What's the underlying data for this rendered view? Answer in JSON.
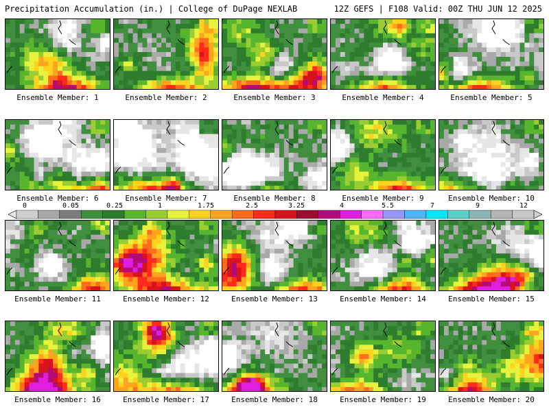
{
  "header": {
    "title_left": "Precipitation Accumulation (in.) | College of DuPage NEXLAB",
    "title_right": "12Z GEFS | F108 Valid: 00Z THU JUN 12 2025"
  },
  "colorbar": {
    "labels": [
      "0",
      "0.05",
      "0.25",
      "1",
      "1.75",
      "2.5",
      "3.25",
      "4",
      "5.5",
      "7",
      "9",
      "12"
    ],
    "colors": [
      "#cfcfcf",
      "#a8a8a8",
      "#7c7c7c",
      "#3f8f3f",
      "#2e7d2e",
      "#58b62e",
      "#9acd32",
      "#e6f23c",
      "#ffd21e",
      "#ffa41e",
      "#ff6c1e",
      "#ff2a1e",
      "#d7141e",
      "#9b0d2e",
      "#b40a7a",
      "#e01ee0",
      "#ff6cff",
      "#9696ff",
      "#4fb4ff",
      "#00e6ff",
      "#5ad0c8",
      "#8cb4b4",
      "#b4b4b4",
      "#c8c8c8"
    ]
  },
  "members": [
    {
      "label": "Ensemble Member: 1",
      "seed": 11
    },
    {
      "label": "Ensemble Member: 2",
      "seed": 23
    },
    {
      "label": "Ensemble Member: 3",
      "seed": 37
    },
    {
      "label": "Ensemble Member: 4",
      "seed": 41
    },
    {
      "label": "Ensemble Member: 5",
      "seed": 53
    },
    {
      "label": "Ensemble Member: 6",
      "seed": 67
    },
    {
      "label": "Ensemble Member: 7",
      "seed": 71
    },
    {
      "label": "Ensemble Member: 8",
      "seed": 83
    },
    {
      "label": "Ensemble Member: 9",
      "seed": 97
    },
    {
      "label": "Ensemble Member: 10",
      "seed": 101
    },
    {
      "label": "Ensemble Member: 11",
      "seed": 113
    },
    {
      "label": "Ensemble Member: 12",
      "seed": 127
    },
    {
      "label": "Ensemble Member: 13",
      "seed": 131
    },
    {
      "label": "Ensemble Member: 14",
      "seed": 149
    },
    {
      "label": "Ensemble Member: 15",
      "seed": 157
    },
    {
      "label": "Ensemble Member: 16",
      "seed": 163
    },
    {
      "label": "Ensemble Member: 17",
      "seed": 173
    },
    {
      "label": "Ensemble Member: 18",
      "seed": 181
    },
    {
      "label": "Ensemble Member: 19",
      "seed": 193
    },
    {
      "label": "Ensemble Member: 20",
      "seed": 199
    }
  ]
}
